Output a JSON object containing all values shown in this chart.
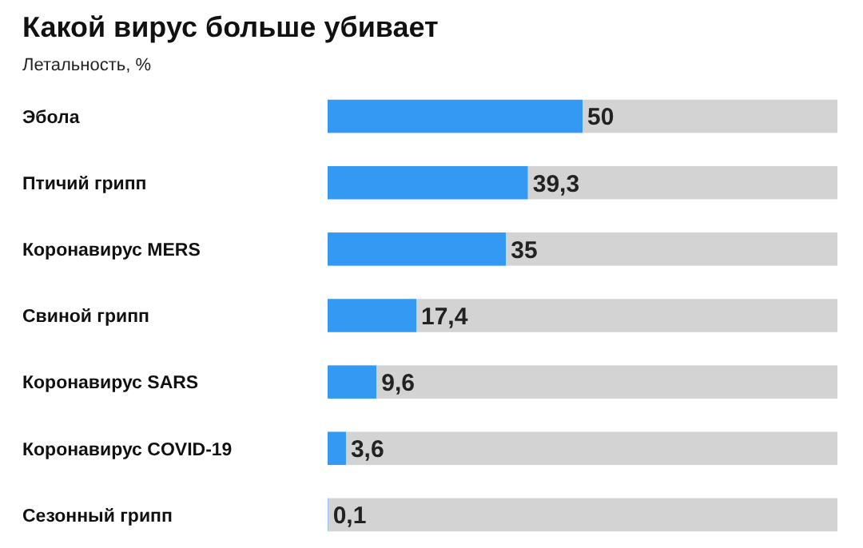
{
  "chart_data": {
    "type": "bar",
    "orientation": "horizontal",
    "stacked": true,
    "title": "Какой вирус больше убивает",
    "subtitle": "Летальность, %",
    "categories": [
      "Эбола",
      "Птичий грипп",
      "Коронавирус MERS",
      "Свиной грипп",
      "Коронавирус SARS",
      "Коронавирус COVID-19",
      "Сезонный грипп"
    ],
    "series": [
      {
        "color": "#3399f3",
        "values": [
          50,
          39.3,
          35,
          17.4,
          9.6,
          3.6,
          0.1
        ],
        "value_labels": [
          "50",
          "39,3",
          "35",
          "17,4",
          "9,6",
          "3,6",
          "0,1"
        ]
      },
      {
        "color": "#d3d3d3",
        "values": [
          50,
          60.7,
          65,
          82.6,
          90.4,
          96.4,
          99.9
        ]
      }
    ],
    "xlim": [
      0,
      100
    ],
    "tick_labels": "y"
  }
}
